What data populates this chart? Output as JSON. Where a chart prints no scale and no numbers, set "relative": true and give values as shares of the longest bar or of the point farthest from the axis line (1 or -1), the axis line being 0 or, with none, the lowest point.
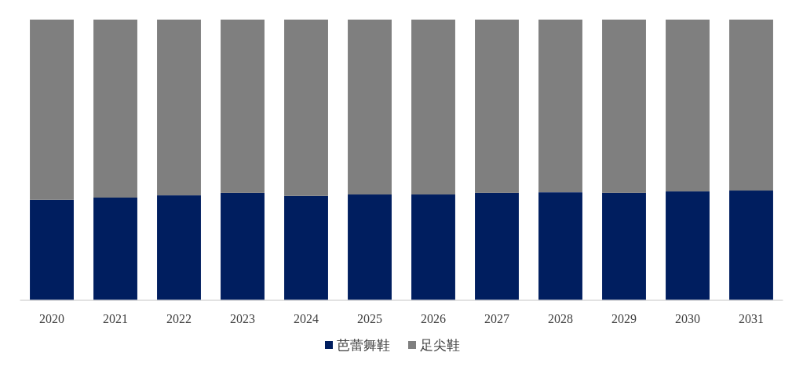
{
  "chart_data": {
    "type": "bar",
    "stacked": true,
    "relative": true,
    "legend": "bottom",
    "categories": [
      "2020",
      "2021",
      "2022",
      "2023",
      "2024",
      "2025",
      "2026",
      "2027",
      "2028",
      "2029",
      "2030",
      "2031"
    ],
    "series": [
      {
        "name": "芭蕾舞鞋",
        "color": "#001e5f",
        "values": [
          0.358,
          0.366,
          0.374,
          0.383,
          0.372,
          0.377,
          0.377,
          0.383,
          0.385,
          0.383,
          0.388,
          0.391
        ]
      },
      {
        "name": "足尖鞋",
        "color": "#7f7f7f",
        "values": [
          0.642,
          0.634,
          0.626,
          0.617,
          0.628,
          0.623,
          0.623,
          0.617,
          0.615,
          0.617,
          0.612,
          0.609
        ]
      }
    ]
  }
}
